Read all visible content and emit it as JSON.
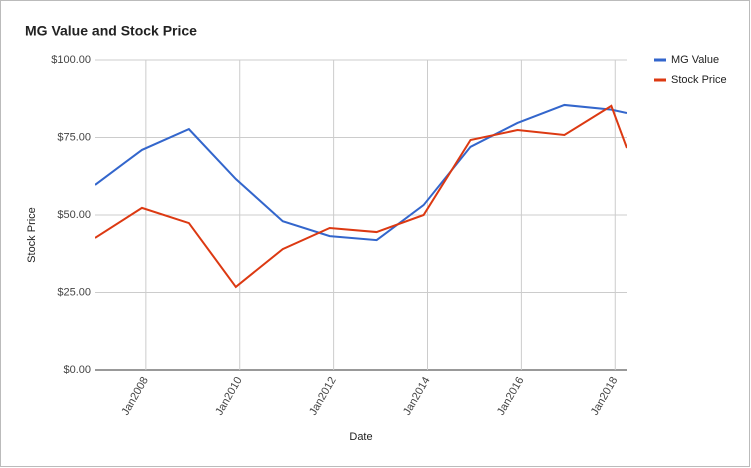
{
  "chart_data": {
    "type": "line",
    "title": "MG Value and Stock Price",
    "x_label": "Date",
    "y_label": "Stock Price",
    "x": [
      "2006-12",
      "2007-12",
      "2008-12",
      "2009-12",
      "2010-12",
      "2011-12",
      "2012-12",
      "2013-12",
      "2014-12",
      "2015-12",
      "2016-12",
      "2017-12",
      "2018-04"
    ],
    "series": [
      {
        "name": "MG Value",
        "color": "#3366cc",
        "values": [
          59.7,
          71.0,
          77.7,
          61.6,
          48.0,
          43.2,
          41.9,
          53.2,
          72.0,
          79.7,
          85.5,
          84.0,
          82.9
        ]
      },
      {
        "name": "Stock Price",
        "color": "#dc3912",
        "values": [
          42.6,
          52.3,
          47.4,
          26.8,
          39.0,
          45.8,
          44.5,
          50.0,
          74.2,
          77.4,
          75.8,
          85.2,
          71.6
        ]
      }
    ],
    "xlim": [
      "2006-12",
      "2018-04"
    ],
    "xticks": [
      {
        "value": "2008-01",
        "label": "Jan2008"
      },
      {
        "value": "2010-01",
        "label": "Jan2010"
      },
      {
        "value": "2012-01",
        "label": "Jan2012"
      },
      {
        "value": "2014-01",
        "label": "Jan2014"
      },
      {
        "value": "2016-01",
        "label": "Jan2016"
      },
      {
        "value": "2018-01",
        "label": "Jan2018"
      }
    ],
    "ylim": [
      0,
      100
    ],
    "yticks": [
      {
        "value": 0,
        "label": "$0.00"
      },
      {
        "value": 25,
        "label": "$25.00"
      },
      {
        "value": 50,
        "label": "$50.00"
      },
      {
        "value": 75,
        "label": "$75.00"
      },
      {
        "value": 100,
        "label": "$100.00"
      }
    ],
    "grid": true,
    "legend": "right"
  }
}
